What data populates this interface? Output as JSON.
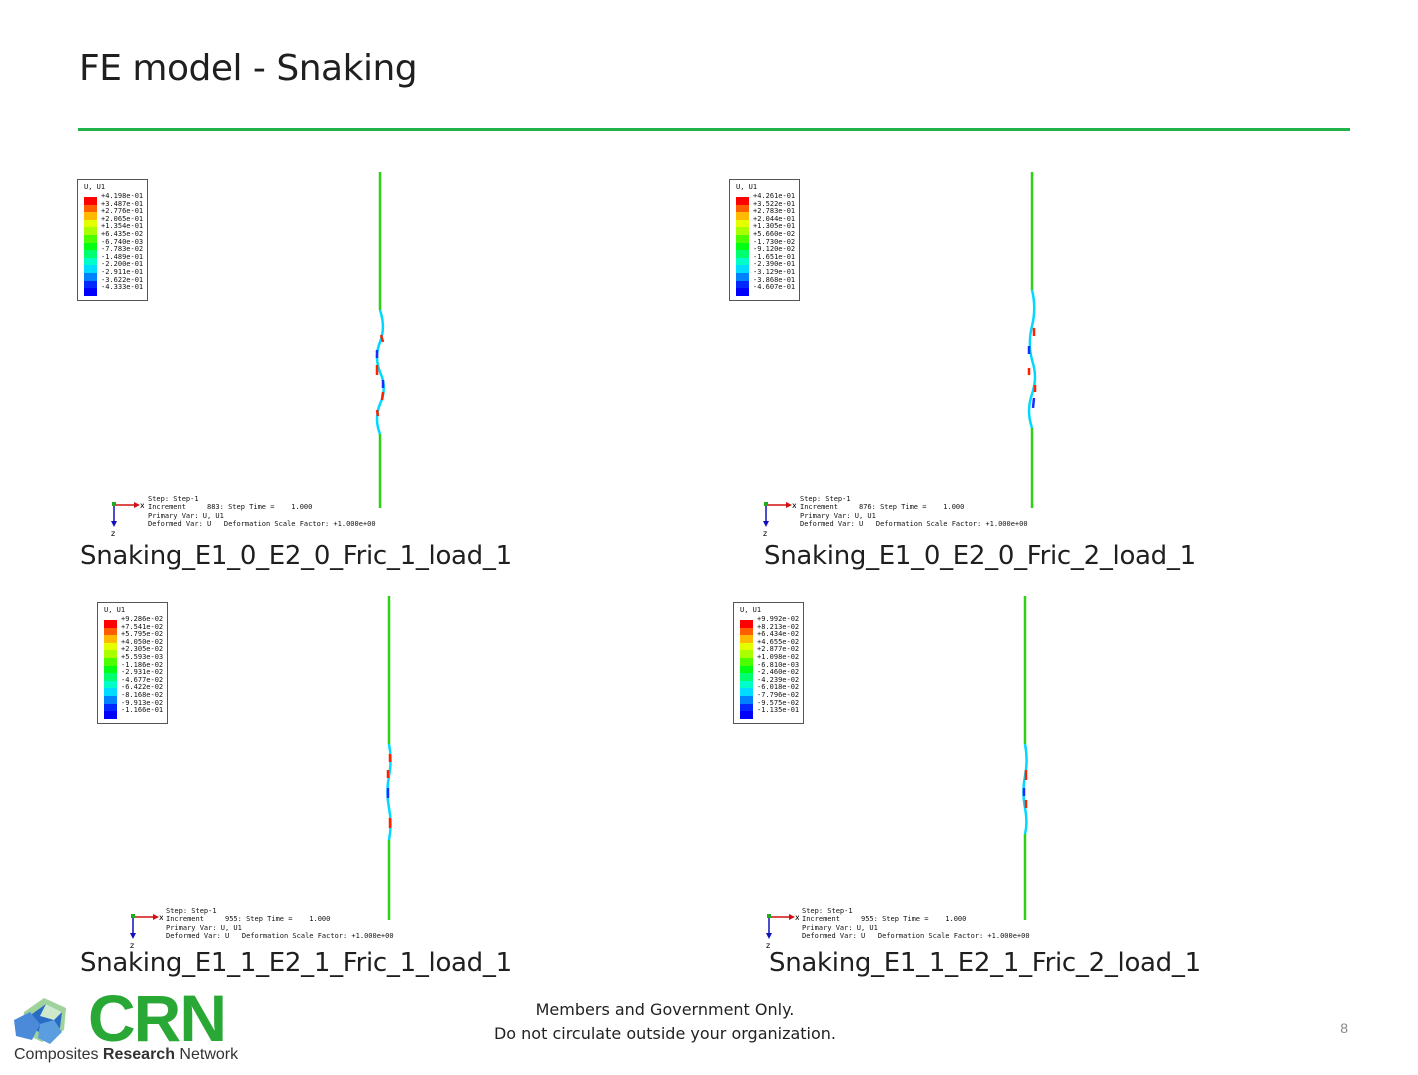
{
  "slide": {
    "title": "FE model - Snaking",
    "page_number": "8"
  },
  "footer": {
    "line1": "Members and Government Only.",
    "line2": "Do not circulate outside your organization."
  },
  "logo": {
    "text": "CRN",
    "subtitle_pre": "Composites ",
    "subtitle_bold": "Research",
    "subtitle_post": " Network"
  },
  "legend_colors": [
    "#ff0000",
    "#ff5e00",
    "#ffb900",
    "#e3ff00",
    "#a7ff00",
    "#4cff00",
    "#00ff14",
    "#00ff6e",
    "#00ffc8",
    "#00dcff",
    "#0082ff",
    "#0028ff",
    "#0000ff"
  ],
  "panels": [
    {
      "legend_title": "U, U1",
      "legend_values": [
        "+4.198e-01",
        "+3.487e-01",
        "+2.776e-01",
        "+2.065e-01",
        "+1.354e-01",
        "+6.435e-02",
        "-6.740e-03",
        "-7.783e-02",
        "-1.489e-01",
        "-2.200e-01",
        "-2.911e-01",
        "-3.622e-01",
        "-4.333e-01"
      ],
      "triad_x": "x",
      "triad_z": "z",
      "step": "Step: Step-1",
      "increment": "Increment     883: Step Time =    1.000",
      "primary": "Primary Var: U, U1",
      "deformed": "Deformed Var: U   Deformation Scale Factor: +1.000e+00",
      "caption": "Snaking_E1_0_E2_0_Fric_1_load_1"
    },
    {
      "legend_title": "U, U1",
      "legend_values": [
        "+4.261e-01",
        "+3.522e-01",
        "+2.783e-01",
        "+2.044e-01",
        "+1.305e-01",
        "+5.660e-02",
        "-1.730e-02",
        "-9.120e-02",
        "-1.651e-01",
        "-2.390e-01",
        "-3.129e-01",
        "-3.868e-01",
        "-4.607e-01"
      ],
      "triad_x": "x",
      "triad_z": "z",
      "step": "Step: Step-1",
      "increment": "Increment     876: Step Time =    1.000",
      "primary": "Primary Var: U, U1",
      "deformed": "Deformed Var: U   Deformation Scale Factor: +1.000e+00",
      "caption": "Snaking_E1_0_E2_0_Fric_2_load_1"
    },
    {
      "legend_title": "U, U1",
      "legend_values": [
        "+9.286e-02",
        "+7.541e-02",
        "+5.795e-02",
        "+4.050e-02",
        "+2.305e-02",
        "+5.593e-03",
        "-1.186e-02",
        "-2.931e-02",
        "-4.677e-02",
        "-6.422e-02",
        "-8.168e-02",
        "-9.913e-02",
        "-1.166e-01"
      ],
      "triad_x": "x",
      "triad_z": "z",
      "step": "Step: Step-1",
      "increment": "Increment     955: Step Time =    1.000",
      "primary": "Primary Var: U, U1",
      "deformed": "Deformed Var: U   Deformation Scale Factor: +1.000e+00",
      "caption": "Snaking_E1_1_E2_1_Fric_1_load_1"
    },
    {
      "legend_title": "U, U1",
      "legend_values": [
        "+9.992e-02",
        "+8.213e-02",
        "+6.434e-02",
        "+4.655e-02",
        "+2.877e-02",
        "+1.098e-02",
        "-6.810e-03",
        "-2.460e-02",
        "-4.239e-02",
        "-6.018e-02",
        "-7.796e-02",
        "-9.575e-02",
        "-1.135e-01"
      ],
      "triad_x": "x",
      "triad_z": "z",
      "step": "Step: Step-1",
      "increment": "Increment     955: Step Time =    1.000",
      "primary": "Primary Var: U, U1",
      "deformed": "Deformed Var: U   Deformation Scale Factor: +1.000e+00",
      "caption": "Snaking_E1_1_E2_1_Fric_2_load_1"
    }
  ]
}
